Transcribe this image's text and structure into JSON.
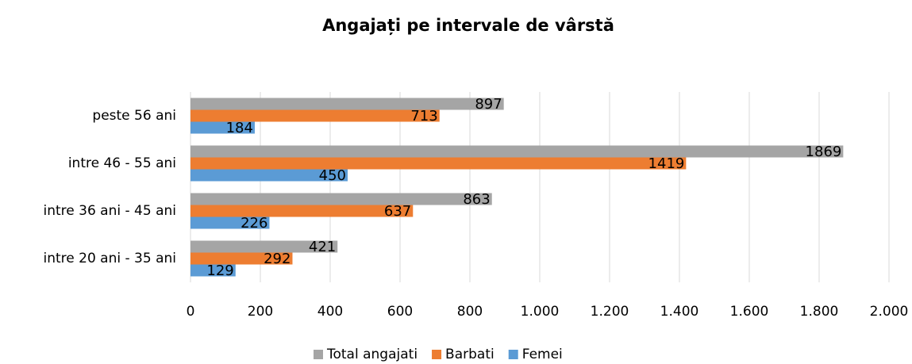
{
  "chart_data": {
    "type": "bar",
    "orientation": "horizontal",
    "title": "Angajați pe intervale de vârstă",
    "categories": [
      "intre 20 ani - 35 ani",
      "intre 36 ani - 45 ani",
      "intre 46 - 55 ani",
      "peste 56 ani"
    ],
    "series": [
      {
        "name": "Total angajati",
        "color": "#a5a5a5",
        "values": [
          421,
          863,
          1869,
          897
        ]
      },
      {
        "name": "Barbati",
        "color": "#ed7d31",
        "values": [
          292,
          637,
          1419,
          713
        ]
      },
      {
        "name": "Femei",
        "color": "#5b9bd5",
        "values": [
          129,
          226,
          450,
          184
        ]
      }
    ],
    "xlim": [
      0,
      2000
    ],
    "xticks": [
      0,
      200,
      400,
      600,
      800,
      {
        "value": 1000,
        "label": "1.000"
      },
      {
        "value": 1200,
        "label": "1.200"
      },
      {
        "value": 1400,
        "label": "1.400"
      },
      {
        "value": 1600,
        "label": "1.600"
      },
      {
        "value": 1800,
        "label": "1.800"
      },
      {
        "value": 2000,
        "label": "2.000"
      }
    ],
    "grid": true,
    "legend": "bottom"
  }
}
